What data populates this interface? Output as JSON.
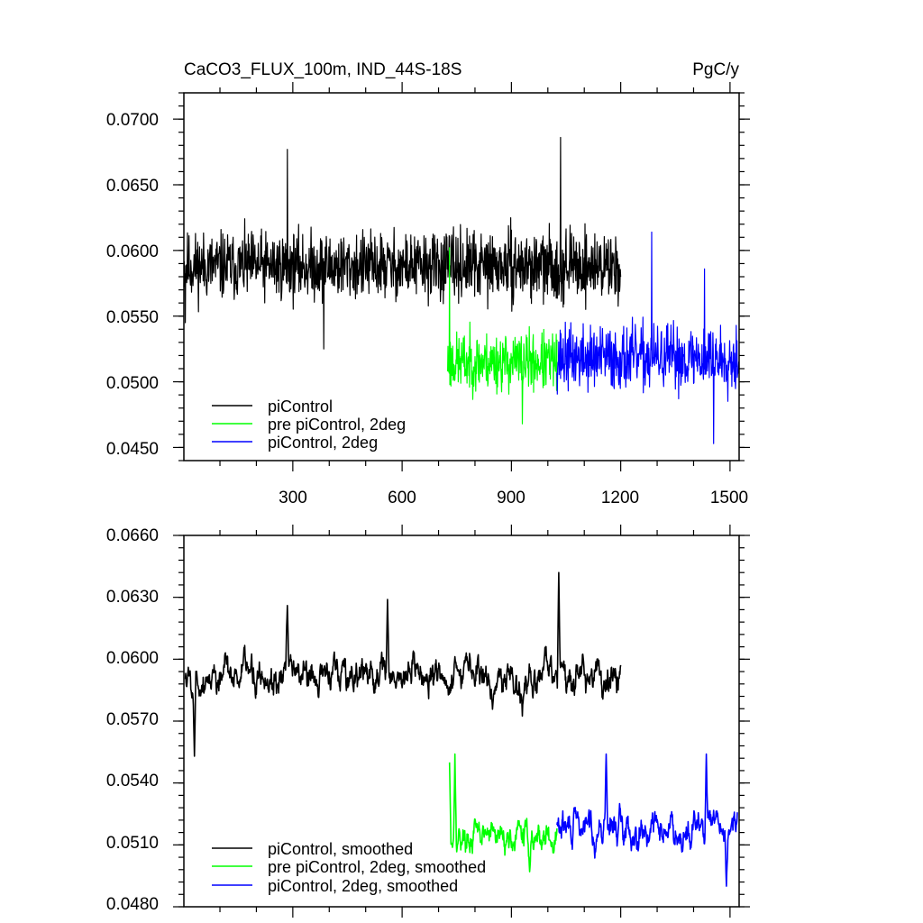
{
  "chart_data": [
    {
      "type": "line",
      "title": "CaCO3_FLUX_100m, IND_44S-18S",
      "units": "PgC/y",
      "xlim": [
        1,
        1525
      ],
      "ylim": [
        0.044,
        0.072
      ],
      "x_ticks": [
        300,
        600,
        900,
        1200,
        1500
      ],
      "x_tick_labels": [
        "300",
        "600",
        "900",
        "1200",
        "1500"
      ],
      "y_ticks": [
        0.045,
        0.05,
        0.055,
        0.06,
        0.065,
        0.07
      ],
      "y_tick_labels": [
        "0.0450",
        "0.0500",
        "0.0550",
        "0.0600",
        "0.0650",
        "0.0700"
      ],
      "legend_position": "bottom-left",
      "series": [
        {
          "name": "piControl",
          "color": "#000000",
          "x_range": [
            1,
            1200
          ],
          "base": 0.0588,
          "noise": 0.0022,
          "seed": 11,
          "features": [
            [
              5,
              0.0545
            ],
            [
              285,
              0.0677
            ],
            [
              1035,
              0.0686
            ],
            [
              385,
              0.0525
            ]
          ]
        },
        {
          "name": "pre piControl, 2deg",
          "color": "#00ff00",
          "x_range": [
            725,
            1025
          ],
          "base": 0.0515,
          "noise": 0.0019,
          "seed": 23,
          "features": [
            [
              730,
              0.0602
            ],
            [
              930,
              0.0468
            ]
          ]
        },
        {
          "name": "piControl, 2deg",
          "color": "#0000ff",
          "x_range": [
            1025,
            1525
          ],
          "base": 0.0518,
          "noise": 0.0021,
          "seed": 37,
          "features": [
            [
              1285,
              0.0614
            ],
            [
              1455,
              0.0453
            ],
            [
              1430,
              0.0586
            ]
          ]
        }
      ]
    },
    {
      "type": "line",
      "xlim": [
        1,
        1525
      ],
      "ylim": [
        0.048,
        0.066
      ],
      "x_ticks": [
        300,
        600,
        900,
        1200,
        1500
      ],
      "y_ticks": [
        0.048,
        0.051,
        0.054,
        0.057,
        0.06,
        0.063,
        0.066
      ],
      "y_tick_labels": [
        "0.0480",
        "0.0510",
        "0.0540",
        "0.0570",
        "0.0600",
        "0.0630",
        "0.0660"
      ],
      "legend_position": "bottom-left",
      "series": [
        {
          "name": "piControl, smoothed",
          "color": "#000000",
          "x_range": [
            5,
            1200
          ],
          "base": 0.0592,
          "noise": 0.0011,
          "seed": 5,
          "features": [
            [
              1030,
              0.0642
            ],
            [
              30,
              0.0553
            ],
            [
              285,
              0.0626
            ],
            [
              560,
              0.0629
            ]
          ]
        },
        {
          "name": "pre piControl, 2deg, smoothed",
          "color": "#00ff00",
          "x_range": [
            730,
            1025
          ],
          "base": 0.0514,
          "noise": 0.0009,
          "seed": 17,
          "features": [
            [
              745,
              0.0554
            ],
            [
              730,
              0.055
            ],
            [
              950,
              0.0497
            ]
          ]
        },
        {
          "name": "piControl, 2deg, smoothed",
          "color": "#0000ff",
          "x_range": [
            1025,
            1520
          ],
          "base": 0.0518,
          "noise": 0.001,
          "seed": 29,
          "features": [
            [
              1160,
              0.0554
            ],
            [
              1435,
              0.0554
            ],
            [
              1490,
              0.049
            ]
          ]
        }
      ]
    }
  ]
}
